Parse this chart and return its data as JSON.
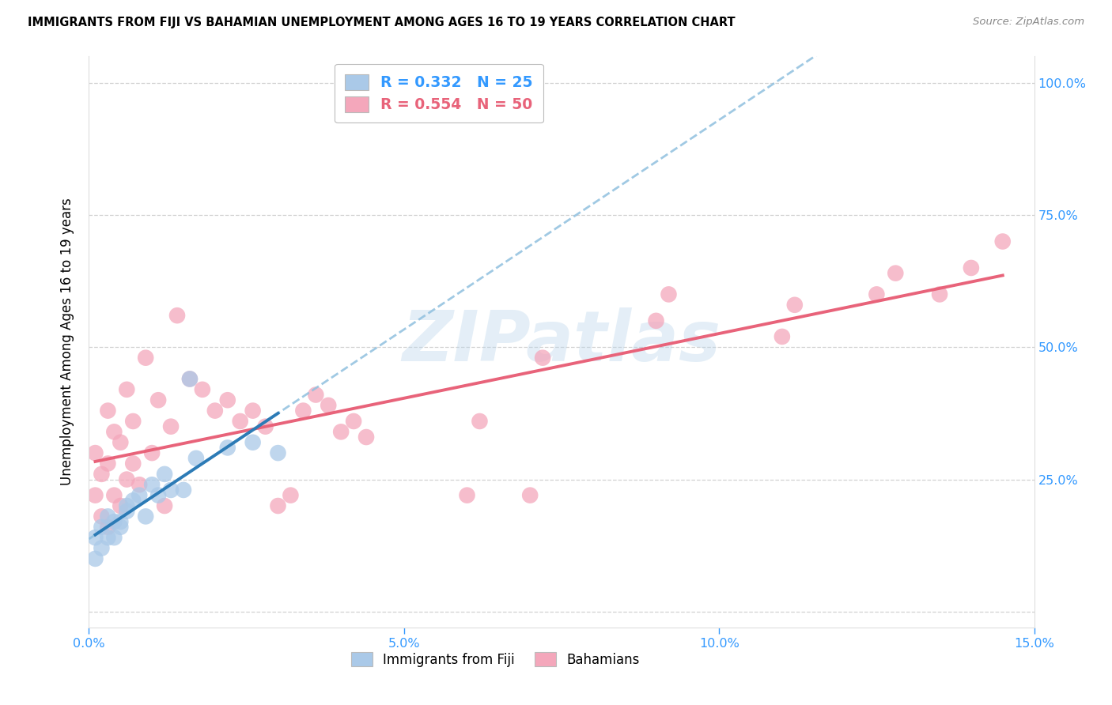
{
  "title": "IMMIGRANTS FROM FIJI VS BAHAMIAN UNEMPLOYMENT AMONG AGES 16 TO 19 YEARS CORRELATION CHART",
  "source": "Source: ZipAtlas.com",
  "ylabel": "Unemployment Among Ages 16 to 19 years",
  "xmin": 0.0,
  "xmax": 0.15,
  "ymin": -0.03,
  "ymax": 1.05,
  "xticks": [
    0.0,
    0.05,
    0.1,
    0.15
  ],
  "xtick_labels": [
    "0.0%",
    "5.0%",
    "10.0%",
    "15.0%"
  ],
  "ytick_positions": [
    0.0,
    0.25,
    0.5,
    0.75,
    1.0
  ],
  "ytick_labels": [
    "",
    "25.0%",
    "50.0%",
    "75.0%",
    "100.0%"
  ],
  "legend1_label": "R = 0.332   N = 25",
  "legend2_label": "R = 0.554   N = 50",
  "bottom_legend1": "Immigrants from Fiji",
  "bottom_legend2": "Bahamians",
  "blue_scatter_color": "#aac9e8",
  "pink_scatter_color": "#f4a7bb",
  "blue_line_color": "#2c7bb6",
  "pink_line_color": "#e8637a",
  "blue_dashed_color": "#90c0df",
  "tick_color": "#3399ff",
  "watermark_text": "ZIPatlas",
  "fiji_x": [
    0.001,
    0.001,
    0.002,
    0.002,
    0.003,
    0.003,
    0.004,
    0.004,
    0.005,
    0.005,
    0.006,
    0.006,
    0.007,
    0.008,
    0.009,
    0.01,
    0.011,
    0.012,
    0.013,
    0.015,
    0.016,
    0.017,
    0.022,
    0.026,
    0.03
  ],
  "fiji_y": [
    0.14,
    0.1,
    0.16,
    0.12,
    0.14,
    0.18,
    0.14,
    0.17,
    0.17,
    0.16,
    0.19,
    0.2,
    0.21,
    0.22,
    0.18,
    0.24,
    0.22,
    0.26,
    0.23,
    0.23,
    0.44,
    0.29,
    0.31,
    0.32,
    0.3
  ],
  "bahamas_x": [
    0.001,
    0.001,
    0.002,
    0.002,
    0.003,
    0.003,
    0.003,
    0.004,
    0.004,
    0.005,
    0.005,
    0.006,
    0.006,
    0.007,
    0.007,
    0.008,
    0.009,
    0.01,
    0.011,
    0.012,
    0.013,
    0.014,
    0.016,
    0.018,
    0.02,
    0.022,
    0.024,
    0.026,
    0.028,
    0.03,
    0.032,
    0.034,
    0.036,
    0.038,
    0.04,
    0.042,
    0.044,
    0.06,
    0.062,
    0.07,
    0.072,
    0.09,
    0.092,
    0.11,
    0.112,
    0.125,
    0.128,
    0.135,
    0.14,
    0.145
  ],
  "bahamas_y": [
    0.22,
    0.3,
    0.18,
    0.26,
    0.16,
    0.28,
    0.38,
    0.22,
    0.34,
    0.2,
    0.32,
    0.25,
    0.42,
    0.28,
    0.36,
    0.24,
    0.48,
    0.3,
    0.4,
    0.2,
    0.35,
    0.56,
    0.44,
    0.42,
    0.38,
    0.4,
    0.36,
    0.38,
    0.35,
    0.2,
    0.22,
    0.38,
    0.41,
    0.39,
    0.34,
    0.36,
    0.33,
    0.22,
    0.36,
    0.22,
    0.48,
    0.55,
    0.6,
    0.52,
    0.58,
    0.6,
    0.64,
    0.6,
    0.65,
    0.7
  ]
}
